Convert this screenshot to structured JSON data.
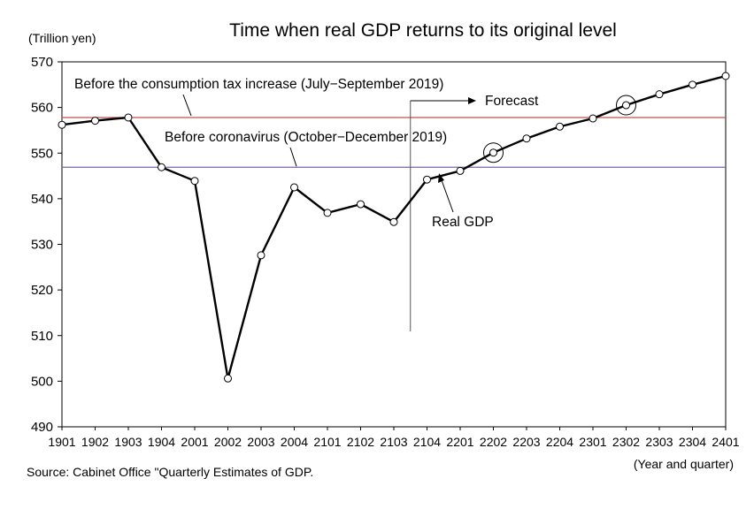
{
  "chart_data": {
    "type": "line",
    "title": "Time when real GDP returns to its original level",
    "ylabel": "(Trillion yen)",
    "xlabel": "(Year and quarter)",
    "source": "Source: Cabinet Office \"Quarterly Estimates of GDP.",
    "ylim": [
      490,
      570
    ],
    "yticks": [
      490,
      500,
      510,
      520,
      530,
      540,
      550,
      560,
      570
    ],
    "categories": [
      "1901",
      "1902",
      "1903",
      "1904",
      "2001",
      "2002",
      "2003",
      "2004",
      "2101",
      "2102",
      "2103",
      "2104",
      "2201",
      "2202",
      "2203",
      "2204",
      "2301",
      "2302",
      "2303",
      "2304",
      "2401"
    ],
    "series": [
      {
        "name": "Real GDP",
        "values": [
          556.2,
          557.1,
          557.8,
          546.9,
          543.9,
          500.6,
          527.6,
          542.5,
          536.9,
          538.8,
          534.9,
          544.2,
          546.1,
          550.1,
          553.2,
          555.8,
          557.6,
          560.5,
          562.9,
          565.0,
          566.9
        ]
      }
    ],
    "reference_lines": [
      {
        "label": "Before the consumption tax increase (July−September 2019)",
        "value": 557.8,
        "color": "#c0504d"
      },
      {
        "label": "Before coronavirus (October−December 2019)",
        "value": 546.9,
        "color": "#7b64a6"
      }
    ],
    "forecast_label": "Forecast",
    "forecast_start_after": "2103",
    "highlighted_points": [
      "2202",
      "2302"
    ],
    "grid": false,
    "legend": "none"
  }
}
